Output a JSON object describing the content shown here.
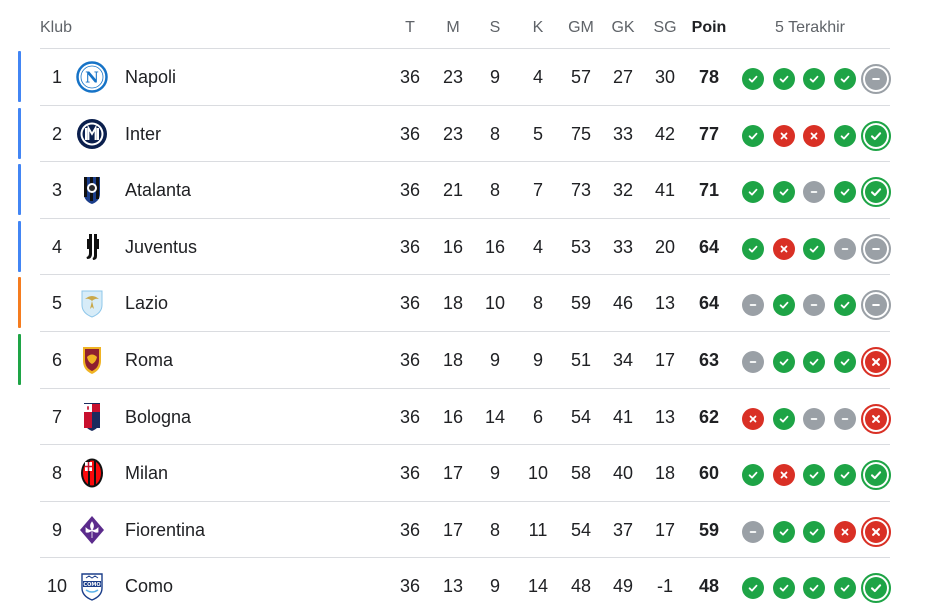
{
  "header": {
    "klub": "Klub",
    "t": "T",
    "m": "M",
    "s": "S",
    "k": "K",
    "gm": "GM",
    "gk": "GK",
    "sg": "SG",
    "poin": "Poin",
    "last5": "5 Terakhir"
  },
  "colors": {
    "champions": "#4285f4",
    "europa": "#f57c1f",
    "conference": "#1ea446",
    "win": "#1ea446",
    "loss": "#d93025",
    "draw": "#9aa0a6"
  },
  "rows": [
    {
      "pos": "1",
      "club": "Napoli",
      "logo": "napoli-logo-icon",
      "qual": "champions",
      "t": "36",
      "m": "23",
      "s": "9",
      "k": "4",
      "gm": "57",
      "gk": "27",
      "sg": "30",
      "poin": "78",
      "form": [
        "W",
        "W",
        "W",
        "W",
        "D"
      ]
    },
    {
      "pos": "2",
      "club": "Inter",
      "logo": "inter-logo-icon",
      "qual": "champions",
      "t": "36",
      "m": "23",
      "s": "8",
      "k": "5",
      "gm": "75",
      "gk": "33",
      "sg": "42",
      "poin": "77",
      "form": [
        "W",
        "L",
        "L",
        "W",
        "W"
      ]
    },
    {
      "pos": "3",
      "club": "Atalanta",
      "logo": "atalanta-logo-icon",
      "qual": "champions",
      "t": "36",
      "m": "21",
      "s": "8",
      "k": "7",
      "gm": "73",
      "gk": "32",
      "sg": "41",
      "poin": "71",
      "form": [
        "W",
        "W",
        "D",
        "W",
        "W"
      ]
    },
    {
      "pos": "4",
      "club": "Juventus",
      "logo": "juventus-logo-icon",
      "qual": "champions",
      "t": "36",
      "m": "16",
      "s": "16",
      "k": "4",
      "gm": "53",
      "gk": "33",
      "sg": "20",
      "poin": "64",
      "form": [
        "W",
        "L",
        "W",
        "D",
        "D"
      ]
    },
    {
      "pos": "5",
      "club": "Lazio",
      "logo": "lazio-logo-icon",
      "qual": "europa",
      "t": "36",
      "m": "18",
      "s": "10",
      "k": "8",
      "gm": "59",
      "gk": "46",
      "sg": "13",
      "poin": "64",
      "form": [
        "D",
        "W",
        "D",
        "W",
        "D"
      ]
    },
    {
      "pos": "6",
      "club": "Roma",
      "logo": "roma-logo-icon",
      "qual": "conference",
      "t": "36",
      "m": "18",
      "s": "9",
      "k": "9",
      "gm": "51",
      "gk": "34",
      "sg": "17",
      "poin": "63",
      "form": [
        "D",
        "W",
        "W",
        "W",
        "L"
      ]
    },
    {
      "pos": "7",
      "club": "Bologna",
      "logo": "bologna-logo-icon",
      "qual": "",
      "t": "36",
      "m": "16",
      "s": "14",
      "k": "6",
      "gm": "54",
      "gk": "41",
      "sg": "13",
      "poin": "62",
      "form": [
        "L",
        "W",
        "D",
        "D",
        "L"
      ]
    },
    {
      "pos": "8",
      "club": "Milan",
      "logo": "milan-logo-icon",
      "qual": "",
      "t": "36",
      "m": "17",
      "s": "9",
      "k": "10",
      "gm": "58",
      "gk": "40",
      "sg": "18",
      "poin": "60",
      "form": [
        "W",
        "L",
        "W",
        "W",
        "W"
      ]
    },
    {
      "pos": "9",
      "club": "Fiorentina",
      "logo": "fiorentina-logo-icon",
      "qual": "",
      "t": "36",
      "m": "17",
      "s": "8",
      "k": "11",
      "gm": "54",
      "gk": "37",
      "sg": "17",
      "poin": "59",
      "form": [
        "D",
        "W",
        "W",
        "L",
        "L"
      ]
    },
    {
      "pos": "10",
      "club": "Como",
      "logo": "como-logo-icon",
      "qual": "",
      "t": "36",
      "m": "13",
      "s": "9",
      "k": "14",
      "gm": "48",
      "gk": "49",
      "sg": "-1",
      "poin": "48",
      "form": [
        "W",
        "W",
        "W",
        "W",
        "W"
      ]
    }
  ]
}
